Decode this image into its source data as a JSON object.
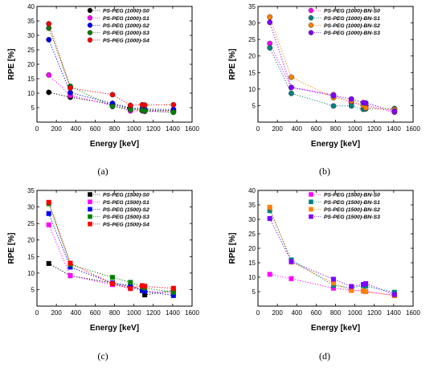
{
  "figure": {
    "panels": [
      {
        "caption": "(a)"
      },
      {
        "caption": "(b)"
      },
      {
        "caption": "(c)"
      },
      {
        "caption": "(d)"
      }
    ]
  },
  "chart_data": [
    {
      "type": "scatter",
      "panel": "(a)",
      "xlabel": "Energy [keV]",
      "ylabel": "RPE [%]",
      "xlim": [
        0,
        1600
      ],
      "ylim": [
        0,
        40
      ],
      "xticks": [
        0,
        200,
        400,
        600,
        800,
        1000,
        1200,
        1400,
        1600
      ],
      "yticks": [
        5,
        10,
        15,
        20,
        25,
        30,
        35,
        40
      ],
      "marker": "circle",
      "legend_position": "top-right",
      "x": [
        122,
        344,
        779,
        964,
        1086,
        1112,
        1408
      ],
      "series": [
        {
          "name": "PS-PEG (1000)-S0",
          "color": "#000000",
          "values": [
            10.3,
            8.6,
            6.2,
            4.6,
            4.3,
            4.1,
            4.0
          ]
        },
        {
          "name": "PS-PEG (1000)-S1",
          "color": "#ff00ff",
          "values": [
            16.3,
            9.2,
            5.8,
            3.9,
            3.9,
            3.7,
            3.6
          ]
        },
        {
          "name": "PS-PEG (1000)-S2",
          "color": "#0000ff",
          "values": [
            28.5,
            10.2,
            6.5,
            4.9,
            4.7,
            4.5,
            4.4
          ]
        },
        {
          "name": "PS-PEG (1000)-S3",
          "color": "#008000",
          "values": [
            32.5,
            12.4,
            5.4,
            4.4,
            4.1,
            3.9,
            3.4
          ]
        },
        {
          "name": "PS-PEG (1000)-S4",
          "color": "#ff0000",
          "values": [
            34.0,
            11.8,
            9.5,
            5.8,
            6.0,
            5.9,
            6.0
          ]
        }
      ]
    },
    {
      "type": "scatter",
      "panel": "(b)",
      "xlabel": "Energy [keV]",
      "ylabel": "RPE [%]",
      "xlim": [
        0,
        1600
      ],
      "ylim": [
        0,
        35
      ],
      "xticks": [
        0,
        200,
        400,
        600,
        800,
        1000,
        1200,
        1400,
        1600
      ],
      "yticks": [
        5,
        10,
        15,
        20,
        25,
        30,
        35
      ],
      "marker": "circle",
      "legend_position": "top-right",
      "x": [
        122,
        344,
        779,
        964,
        1086,
        1112,
        1408
      ],
      "series": [
        {
          "name": "PS-PEG (1000)-BN-S0",
          "color": "#ff00ff",
          "values": [
            23.8,
            10.5,
            8.3,
            5.8,
            5.2,
            5.1,
            3.0
          ]
        },
        {
          "name": "PS-PEG (1000)-BN-S1",
          "color": "#008080",
          "values": [
            22.5,
            8.7,
            4.9,
            4.9,
            3.9,
            4.0,
            4.1
          ]
        },
        {
          "name": "PS-PEG (1000)-BN-S2",
          "color": "#ff8000",
          "values": [
            31.8,
            13.6,
            7.4,
            6.4,
            5.0,
            4.3,
            3.8
          ]
        },
        {
          "name": "PS-PEG (1000)-BN-S3",
          "color": "#8000ff",
          "values": [
            30.2,
            10.5,
            8.0,
            7.0,
            5.9,
            5.8,
            3.3
          ]
        }
      ]
    },
    {
      "type": "scatter",
      "panel": "(c)",
      "xlabel": "Energy [keV]",
      "ylabel": "RPE [%]",
      "xlim": [
        0,
        1600
      ],
      "ylim": [
        0,
        35
      ],
      "xticks": [
        0,
        200,
        400,
        600,
        800,
        1000,
        1200,
        1400,
        1600
      ],
      "yticks": [
        5,
        10,
        15,
        20,
        25,
        30,
        35
      ],
      "marker": "square",
      "legend_position": "top-right",
      "x": [
        122,
        344,
        779,
        964,
        1086,
        1112,
        1408
      ],
      "series": [
        {
          "name": "PS-PEG (1500)-S0",
          "color": "#000000",
          "values": [
            12.9,
            9.2,
            7.0,
            5.8,
            4.7,
            3.4,
            4.8
          ]
        },
        {
          "name": "PS-PEG (1500)-S1",
          "color": "#ff00ff",
          "values": [
            24.6,
            9.2,
            6.5,
            5.5,
            5.2,
            4.6,
            3.9
          ]
        },
        {
          "name": "PS-PEG (1500)-S2",
          "color": "#0000ff",
          "values": [
            28.0,
            11.8,
            7.0,
            6.2,
            5.0,
            4.5,
            3.2
          ]
        },
        {
          "name": "PS-PEG (1500)-S3",
          "color": "#008000",
          "values": [
            31.0,
            12.6,
            8.7,
            7.2,
            5.8,
            5.5,
            4.2
          ]
        },
        {
          "name": "PS-PEG (1500)-S4",
          "color": "#ff0000",
          "values": [
            31.4,
            13.0,
            6.8,
            5.3,
            6.2,
            6.0,
            5.4
          ]
        }
      ]
    },
    {
      "type": "scatter",
      "panel": "(d)",
      "xlabel": "Energy [keV]",
      "ylabel": "RPE [%]",
      "xlim": [
        0,
        1600
      ],
      "ylim": [
        0,
        40
      ],
      "xticks": [
        0,
        200,
        400,
        600,
        800,
        1000,
        1200,
        1400,
        1600
      ],
      "yticks": [
        5,
        10,
        15,
        20,
        25,
        30,
        35,
        40
      ],
      "marker": "square",
      "legend_position": "top-right",
      "x": [
        122,
        344,
        779,
        964,
        1086,
        1112,
        1408
      ],
      "series": [
        {
          "name": "PS-PEG (1500)-BN-S0",
          "color": "#ff00ff",
          "values": [
            11.0,
            9.5,
            6.2,
            5.5,
            5.2,
            5.0,
            3.8
          ]
        },
        {
          "name": "PS-PEG (1500)-BN-S1",
          "color": "#008080",
          "values": [
            33.0,
            16.0,
            7.2,
            6.3,
            7.1,
            6.9,
            4.8
          ]
        },
        {
          "name": "PS-PEG (1500)-BN-S2",
          "color": "#ff8000",
          "values": [
            34.2,
            15.2,
            8.0,
            5.4,
            5.3,
            5.0,
            3.6
          ]
        },
        {
          "name": "PS-PEG (1500)-BN-S3",
          "color": "#8000ff",
          "values": [
            30.3,
            15.4,
            9.3,
            6.8,
            7.5,
            7.8,
            4.0
          ]
        }
      ]
    }
  ]
}
